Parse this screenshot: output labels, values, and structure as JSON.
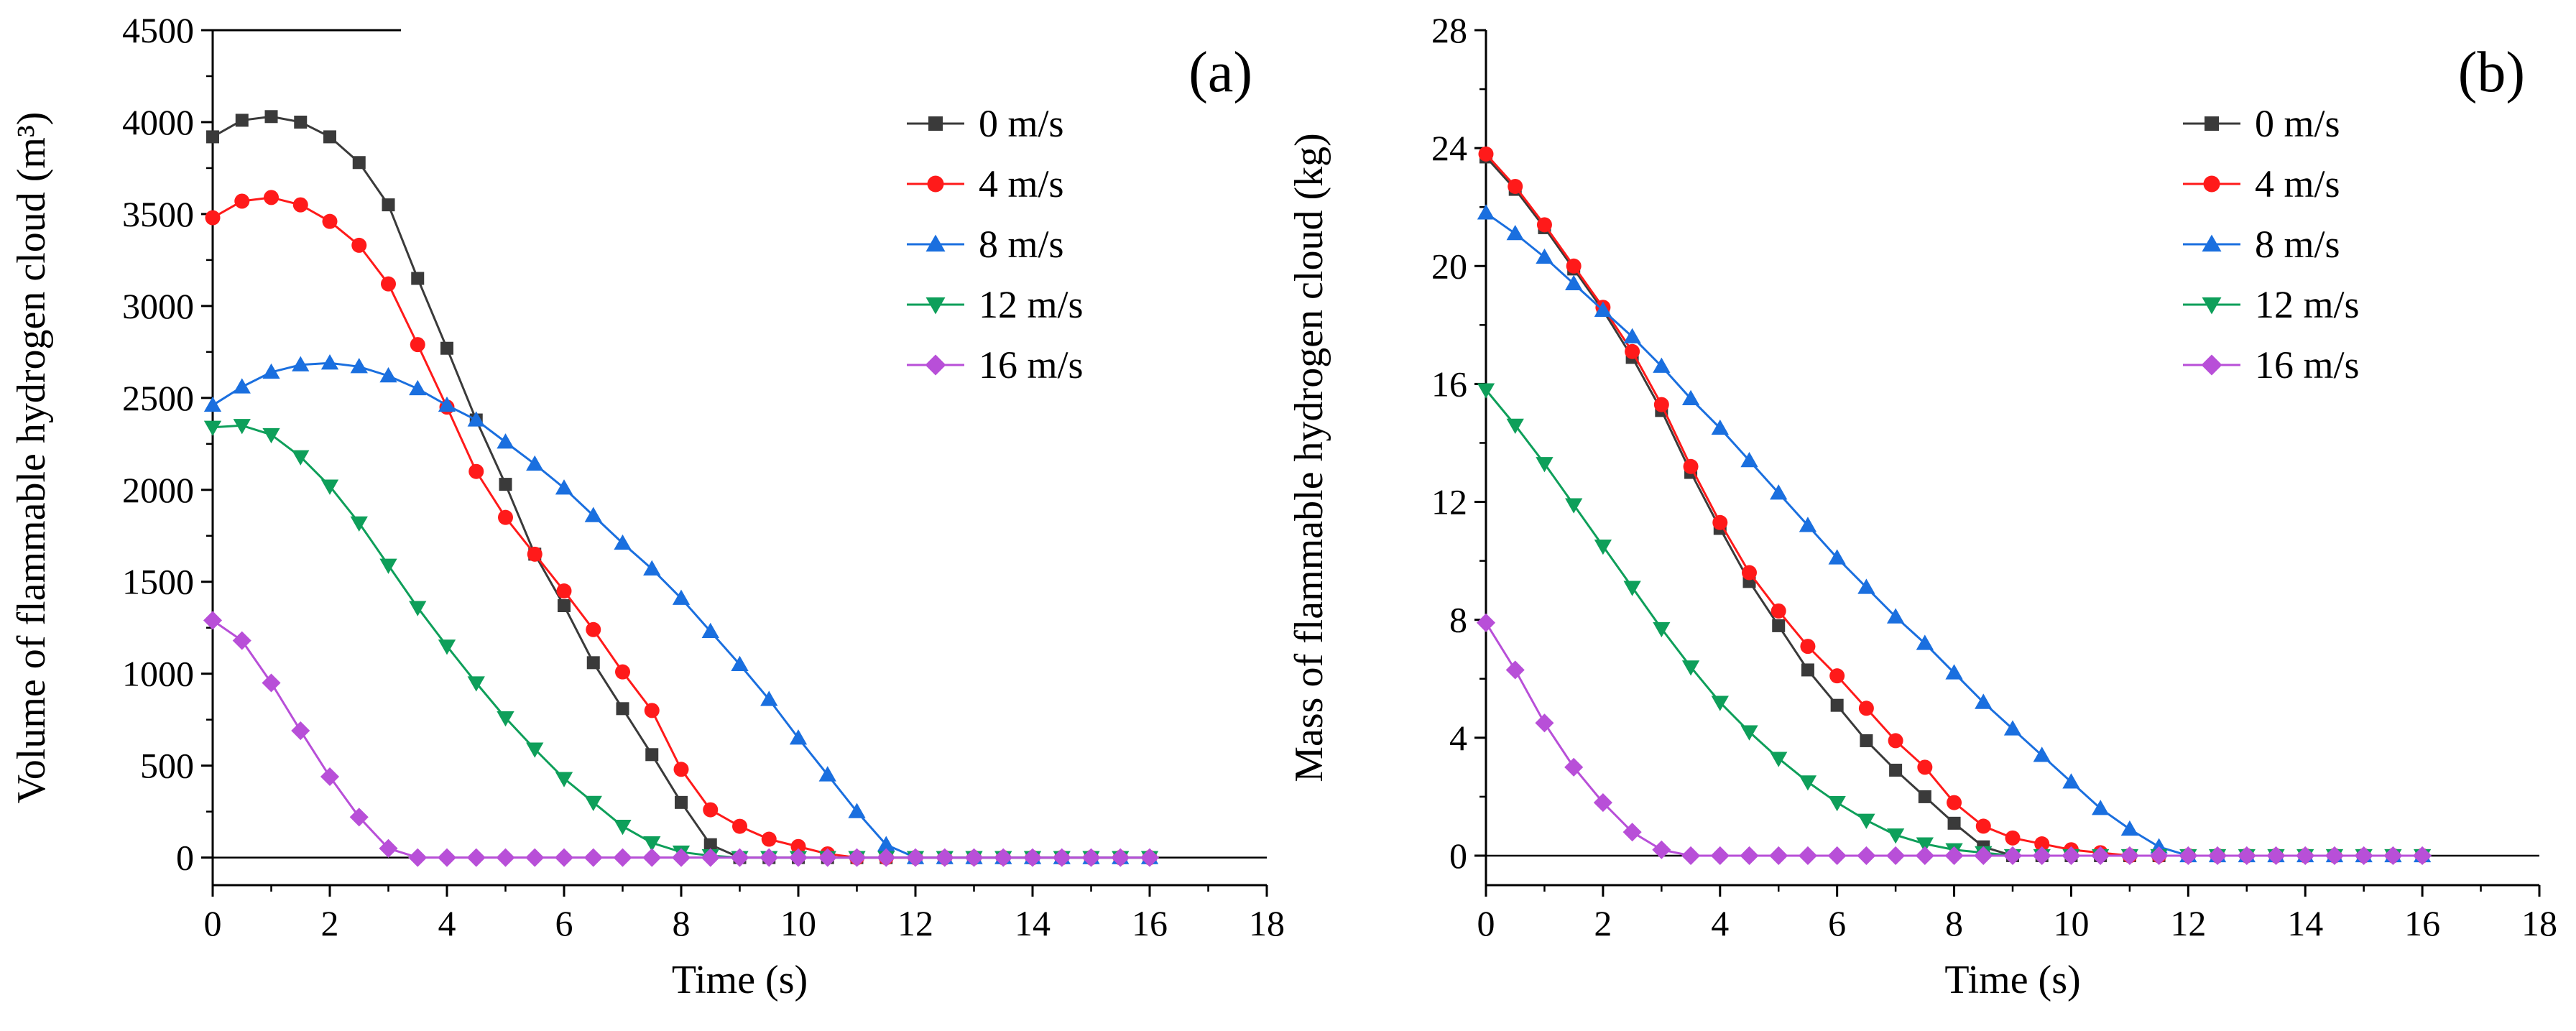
{
  "chart_data": [
    {
      "type": "line",
      "panel_label": "(a)",
      "title": "",
      "xlabel": "Time (s)",
      "ylabel": "Volume of flammable hydrogen cloud (m³)",
      "xlim": [
        0,
        18
      ],
      "ylim": [
        -150,
        4500
      ],
      "xticks": [
        0,
        2,
        4,
        6,
        8,
        10,
        12,
        14,
        16,
        18
      ],
      "yticks": [
        0,
        500,
        1000,
        1500,
        2000,
        2500,
        3000,
        3500,
        4000,
        4500
      ],
      "legend_position": "top-right",
      "x": [
        0,
        0.5,
        1,
        1.5,
        2,
        2.5,
        3,
        3.5,
        4,
        4.5,
        5,
        5.5,
        6,
        6.5,
        7,
        7.5,
        8,
        8.5,
        9,
        9.5,
        10,
        10.5,
        11,
        11.5,
        12,
        12.5,
        13,
        13.5,
        14,
        14.5,
        15,
        15.5,
        16
      ],
      "series": [
        {
          "name": "0 m/s",
          "color": "#3a3a3a",
          "marker": "square",
          "values": [
            3920,
            4010,
            4030,
            4000,
            3920,
            3780,
            3550,
            3150,
            2770,
            2380,
            2030,
            1650,
            1370,
            1060,
            810,
            560,
            300,
            70,
            0,
            0,
            0,
            0,
            0,
            0,
            0,
            0,
            0,
            0,
            0,
            0,
            0,
            0,
            0
          ]
        },
        {
          "name": "4 m/s",
          "color": "#ff1a1a",
          "marker": "circle",
          "values": [
            3480,
            3570,
            3590,
            3550,
            3460,
            3330,
            3120,
            2790,
            2450,
            2100,
            1850,
            1650,
            1450,
            1240,
            1010,
            800,
            480,
            260,
            170,
            100,
            60,
            20,
            0,
            0,
            0,
            0,
            0,
            0,
            0,
            0,
            0,
            0,
            0
          ]
        },
        {
          "name": "8 m/s",
          "color": "#1a6fdf",
          "marker": "triangle-up",
          "values": [
            2460,
            2560,
            2640,
            2680,
            2690,
            2670,
            2620,
            2550,
            2460,
            2380,
            2260,
            2140,
            2010,
            1860,
            1710,
            1570,
            1410,
            1230,
            1050,
            860,
            650,
            450,
            250,
            70,
            0,
            0,
            0,
            0,
            0,
            0,
            0,
            0,
            0
          ]
        },
        {
          "name": "12 m/s",
          "color": "#0e9f5a",
          "marker": "triangle-down",
          "values": [
            2340,
            2350,
            2300,
            2180,
            2020,
            1820,
            1590,
            1360,
            1150,
            950,
            760,
            590,
            430,
            300,
            170,
            80,
            30,
            10,
            0,
            0,
            0,
            0,
            0,
            0,
            0,
            0,
            0,
            0,
            0,
            0,
            0,
            0,
            0
          ]
        },
        {
          "name": "16 m/s",
          "color": "#b84fd8",
          "marker": "diamond",
          "values": [
            1290,
            1180,
            950,
            690,
            440,
            220,
            50,
            0,
            0,
            0,
            0,
            0,
            0,
            0,
            0,
            0,
            0,
            0,
            0,
            0,
            0,
            0,
            0,
            0,
            0,
            0,
            0,
            0,
            0,
            0,
            0,
            0,
            0
          ]
        }
      ]
    },
    {
      "type": "line",
      "panel_label": "(b)",
      "title": "",
      "xlabel": "Time (s)",
      "ylabel": "Mass of flammable hydrogen cloud (kg)",
      "xlim": [
        0,
        18
      ],
      "ylim": [
        -1,
        28
      ],
      "xticks": [
        0,
        2,
        4,
        6,
        8,
        10,
        12,
        14,
        16,
        18
      ],
      "yticks": [
        0,
        4,
        8,
        12,
        16,
        20,
        24,
        28
      ],
      "legend_position": "top-right",
      "x": [
        0,
        0.5,
        1,
        1.5,
        2,
        2.5,
        3,
        3.5,
        4,
        4.5,
        5,
        5.5,
        6,
        6.5,
        7,
        7.5,
        8,
        8.5,
        9,
        9.5,
        10,
        10.5,
        11,
        11.5,
        12,
        12.5,
        13,
        13.5,
        14,
        14.5,
        15,
        15.5,
        16
      ],
      "series": [
        {
          "name": "0 m/s",
          "color": "#3a3a3a",
          "marker": "square",
          "values": [
            23.7,
            22.6,
            21.3,
            19.9,
            18.5,
            16.9,
            15.1,
            13.0,
            11.1,
            9.3,
            7.8,
            6.3,
            5.1,
            3.9,
            2.9,
            2.0,
            1.1,
            0.3,
            0,
            0,
            0,
            0,
            0,
            0,
            0,
            0,
            0,
            0,
            0,
            0,
            0,
            0,
            0
          ]
        },
        {
          "name": "4 m/s",
          "color": "#ff1a1a",
          "marker": "circle",
          "values": [
            23.8,
            22.7,
            21.4,
            20.0,
            18.6,
            17.1,
            15.3,
            13.2,
            11.3,
            9.6,
            8.3,
            7.1,
            6.1,
            5.0,
            3.9,
            3.0,
            1.8,
            1.0,
            0.6,
            0.4,
            0.2,
            0.1,
            0,
            0,
            0,
            0,
            0,
            0,
            0,
            0,
            0,
            0,
            0
          ]
        },
        {
          "name": "8 m/s",
          "color": "#1a6fdf",
          "marker": "triangle-up",
          "values": [
            21.8,
            21.1,
            20.3,
            19.4,
            18.5,
            17.6,
            16.6,
            15.5,
            14.5,
            13.4,
            12.3,
            11.2,
            10.1,
            9.1,
            8.1,
            7.2,
            6.2,
            5.2,
            4.3,
            3.4,
            2.5,
            1.6,
            0.9,
            0.3,
            0,
            0,
            0,
            0,
            0,
            0,
            0,
            0,
            0
          ]
        },
        {
          "name": "12 m/s",
          "color": "#0e9f5a",
          "marker": "triangle-down",
          "values": [
            15.8,
            14.6,
            13.3,
            11.9,
            10.5,
            9.1,
            7.7,
            6.4,
            5.2,
            4.2,
            3.3,
            2.5,
            1.8,
            1.2,
            0.7,
            0.4,
            0.2,
            0.1,
            0,
            0,
            0,
            0,
            0,
            0,
            0,
            0,
            0,
            0,
            0,
            0,
            0,
            0,
            0
          ]
        },
        {
          "name": "16 m/s",
          "color": "#b84fd8",
          "marker": "diamond",
          "values": [
            7.9,
            6.3,
            4.5,
            3.0,
            1.8,
            0.8,
            0.2,
            0,
            0,
            0,
            0,
            0,
            0,
            0,
            0,
            0,
            0,
            0,
            0,
            0,
            0,
            0,
            0,
            0,
            0,
            0,
            0,
            0,
            0,
            0,
            0,
            0,
            0
          ]
        }
      ]
    }
  ]
}
